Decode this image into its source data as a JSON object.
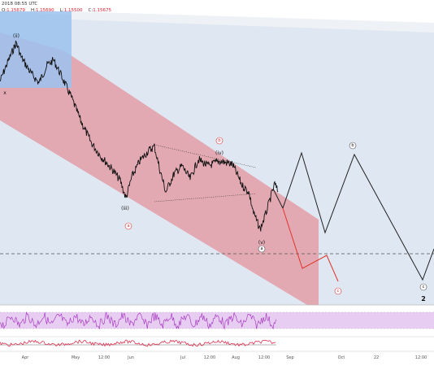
{
  "header": {
    "time_fragment": "2018 08:55 UTC",
    "ohlc": {
      "o_label": "O:",
      "o_value": "1.15679",
      "h_label": "H:",
      "h_value": "1.15690",
      "l_label": "L:",
      "l_value": "1.15500",
      "c_label": "C:",
      "c_value": "1.15675"
    }
  },
  "wave_labels": {
    "ii": "(ii)",
    "y": "y",
    "x": "x",
    "iii": "(iii)",
    "iv": "(iv)",
    "v": "(v)",
    "a_red": "a",
    "b_red": "b",
    "c_red": "c",
    "a_gray": "a",
    "b_proj": "b",
    "c_proj": "c",
    "two": "2"
  },
  "x_axis": {
    "ticks": [
      "Apr",
      "May",
      "12:00",
      "Jun",
      "Jul",
      "12:00",
      "Aug",
      "12:00",
      "Sep",
      "Oct",
      "22",
      "12:00"
    ]
  },
  "colors": {
    "channel_fill": "#e3a4ad",
    "blue_box": "#9cc2ee",
    "projection_bg": "#dfe7f2",
    "projection_line": "#222222",
    "red_projection": "#e0342a",
    "rsi_band": "#e8cdf2",
    "rsi_line": "#a83ec2",
    "osc_red": "#e03050"
  }
}
